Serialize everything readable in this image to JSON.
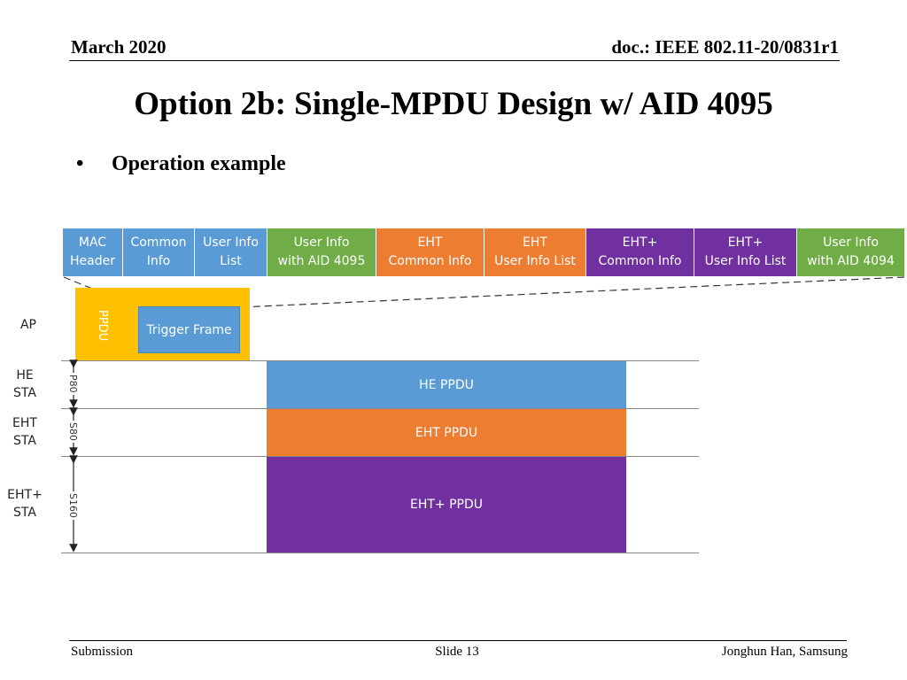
{
  "header": {
    "date": "March 2020",
    "doc": "doc.: IEEE 802.11-20/0831r1"
  },
  "title": "Option 2b: Single-MPDU Design w/ AID 4095",
  "bullet": "Operation example",
  "frame_fields": [
    {
      "label": "MAC\nHeader",
      "color": "blue"
    },
    {
      "label": "Common\nInfo",
      "color": "blue"
    },
    {
      "label": "User Info\nList",
      "color": "blue"
    },
    {
      "label": "User Info\nwith AID 4095",
      "color": "green"
    },
    {
      "label": "EHT\nCommon Info",
      "color": "orange"
    },
    {
      "label": "EHT\nUser Info List",
      "color": "orange"
    },
    {
      "label": "EHT+\nCommon Info",
      "color": "purple"
    },
    {
      "label": "EHT+\nUser Info List",
      "color": "purple"
    },
    {
      "label": "User Info\nwith AID 4094",
      "color": "green"
    }
  ],
  "ap": {
    "row_label": "AP",
    "ppdu_label": "PPDU",
    "trigger_label": "Trigger Frame"
  },
  "rows": [
    {
      "label": "HE\nSTA",
      "bandwidth": "P80",
      "ppdu": "HE PPDU",
      "color": "#5b9bd5"
    },
    {
      "label": "EHT\nSTA",
      "bandwidth": "S80",
      "ppdu": "EHT PPDU",
      "color": "#ed7d31"
    },
    {
      "label": "EHT+\nSTA",
      "bandwidth": "S160",
      "ppdu": "EHT+ PPDU",
      "color": "#7030a0"
    }
  ],
  "footer": {
    "left": "Submission",
    "center": "Slide 13",
    "right": "Jonghun Han, Samsung"
  }
}
